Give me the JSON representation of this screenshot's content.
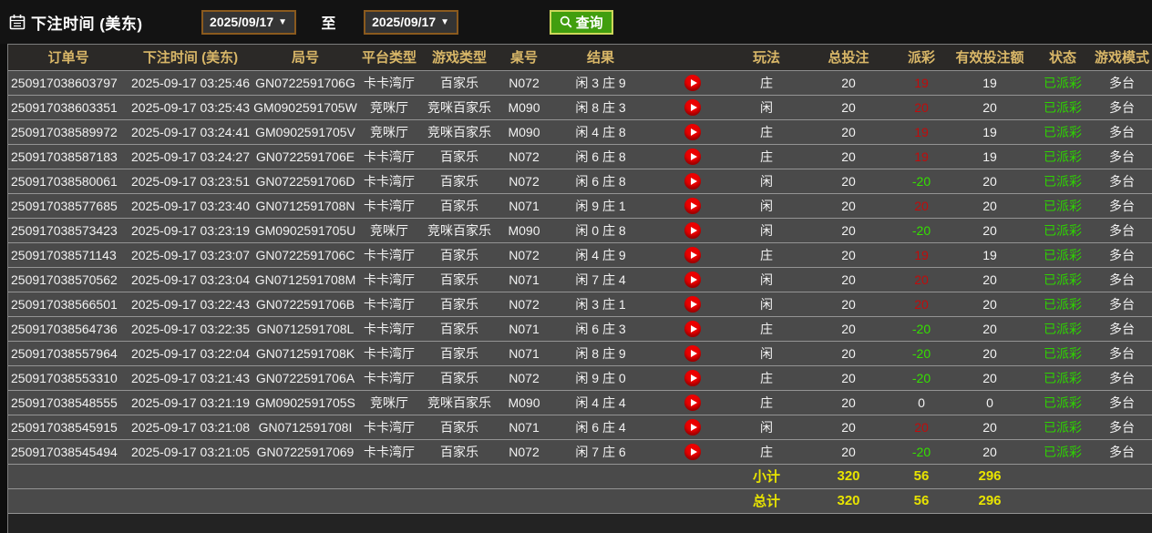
{
  "query_bar": {
    "label": "下注时间 (美东)",
    "date_from": "2025/09/17",
    "to_label": "至",
    "date_to": "2025/09/17",
    "caret": "▼",
    "search_label": "查询"
  },
  "table": {
    "columns": [
      {
        "key": "order_no",
        "label": "订单号"
      },
      {
        "key": "bet_time",
        "label": "下注时间 (美东)"
      },
      {
        "key": "round_no",
        "label": "局号"
      },
      {
        "key": "platform",
        "label": "平台类型"
      },
      {
        "key": "game_type",
        "label": "游戏类型"
      },
      {
        "key": "table_no",
        "label": "桌号"
      },
      {
        "key": "result",
        "label": "结果"
      },
      {
        "key": "video",
        "label": ""
      },
      {
        "key": "play",
        "label": "玩法"
      },
      {
        "key": "total_bet",
        "label": "总投注"
      },
      {
        "key": "payout",
        "label": "派彩"
      },
      {
        "key": "valid_bet",
        "label": "有效投注额"
      },
      {
        "key": "status",
        "label": "状态"
      },
      {
        "key": "mode",
        "label": "游戏模式"
      }
    ],
    "rows": [
      {
        "order_no": "250917038603797",
        "bet_time": "2025-09-17 03:25:46",
        "round_no": "GN0722591706G",
        "platform": "卡卡湾厅",
        "game_type": "百家乐",
        "table_no": "N072",
        "result": "闲 3 庄 9",
        "play": "庄",
        "total_bet": "20",
        "payout": "19",
        "payout_color": "win",
        "valid_bet": "19",
        "status": "已派彩",
        "mode": "多台"
      },
      {
        "order_no": "250917038603351",
        "bet_time": "2025-09-17 03:25:43",
        "round_no": "GM0902591705W",
        "platform": "竞咪厅",
        "game_type": "竞咪百家乐",
        "table_no": "M090",
        "result": "闲 8 庄 3",
        "play": "闲",
        "total_bet": "20",
        "payout": "20",
        "payout_color": "win",
        "valid_bet": "20",
        "status": "已派彩",
        "mode": "多台"
      },
      {
        "order_no": "250917038589972",
        "bet_time": "2025-09-17 03:24:41",
        "round_no": "GM0902591705V",
        "platform": "竞咪厅",
        "game_type": "竞咪百家乐",
        "table_no": "M090",
        "result": "闲 4 庄 8",
        "play": "庄",
        "total_bet": "20",
        "payout": "19",
        "payout_color": "win",
        "valid_bet": "19",
        "status": "已派彩",
        "mode": "多台"
      },
      {
        "order_no": "250917038587183",
        "bet_time": "2025-09-17 03:24:27",
        "round_no": "GN0722591706E",
        "platform": "卡卡湾厅",
        "game_type": "百家乐",
        "table_no": "N072",
        "result": "闲 6 庄 8",
        "play": "庄",
        "total_bet": "20",
        "payout": "19",
        "payout_color": "win",
        "valid_bet": "19",
        "status": "已派彩",
        "mode": "多台"
      },
      {
        "order_no": "250917038580061",
        "bet_time": "2025-09-17 03:23:51",
        "round_no": "GN0722591706D",
        "platform": "卡卡湾厅",
        "game_type": "百家乐",
        "table_no": "N072",
        "result": "闲 6 庄 8",
        "play": "闲",
        "total_bet": "20",
        "payout": "-20",
        "payout_color": "loss",
        "valid_bet": "20",
        "status": "已派彩",
        "mode": "多台"
      },
      {
        "order_no": "250917038577685",
        "bet_time": "2025-09-17 03:23:40",
        "round_no": "GN0712591708N",
        "platform": "卡卡湾厅",
        "game_type": "百家乐",
        "table_no": "N071",
        "result": "闲 9 庄 1",
        "play": "闲",
        "total_bet": "20",
        "payout": "20",
        "payout_color": "win",
        "valid_bet": "20",
        "status": "已派彩",
        "mode": "多台"
      },
      {
        "order_no": "250917038573423",
        "bet_time": "2025-09-17 03:23:19",
        "round_no": "GM0902591705U",
        "platform": "竞咪厅",
        "game_type": "竞咪百家乐",
        "table_no": "M090",
        "result": "闲 0 庄 8",
        "play": "闲",
        "total_bet": "20",
        "payout": "-20",
        "payout_color": "loss",
        "valid_bet": "20",
        "status": "已派彩",
        "mode": "多台"
      },
      {
        "order_no": "250917038571143",
        "bet_time": "2025-09-17 03:23:07",
        "round_no": "GN0722591706C",
        "platform": "卡卡湾厅",
        "game_type": "百家乐",
        "table_no": "N072",
        "result": "闲 4 庄 9",
        "play": "庄",
        "total_bet": "20",
        "payout": "19",
        "payout_color": "win",
        "valid_bet": "19",
        "status": "已派彩",
        "mode": "多台"
      },
      {
        "order_no": "250917038570562",
        "bet_time": "2025-09-17 03:23:04",
        "round_no": "GN0712591708M",
        "platform": "卡卡湾厅",
        "game_type": "百家乐",
        "table_no": "N071",
        "result": "闲 7 庄 4",
        "play": "闲",
        "total_bet": "20",
        "payout": "20",
        "payout_color": "win",
        "valid_bet": "20",
        "status": "已派彩",
        "mode": "多台"
      },
      {
        "order_no": "250917038566501",
        "bet_time": "2025-09-17 03:22:43",
        "round_no": "GN0722591706B",
        "platform": "卡卡湾厅",
        "game_type": "百家乐",
        "table_no": "N072",
        "result": "闲 3 庄 1",
        "play": "闲",
        "total_bet": "20",
        "payout": "20",
        "payout_color": "win",
        "valid_bet": "20",
        "status": "已派彩",
        "mode": "多台"
      },
      {
        "order_no": "250917038564736",
        "bet_time": "2025-09-17 03:22:35",
        "round_no": "GN0712591708L",
        "platform": "卡卡湾厅",
        "game_type": "百家乐",
        "table_no": "N071",
        "result": "闲 6 庄 3",
        "play": "庄",
        "total_bet": "20",
        "payout": "-20",
        "payout_color": "loss",
        "valid_bet": "20",
        "status": "已派彩",
        "mode": "多台"
      },
      {
        "order_no": "250917038557964",
        "bet_time": "2025-09-17 03:22:04",
        "round_no": "GN0712591708K",
        "platform": "卡卡湾厅",
        "game_type": "百家乐",
        "table_no": "N071",
        "result": "闲 8 庄 9",
        "play": "闲",
        "total_bet": "20",
        "payout": "-20",
        "payout_color": "loss",
        "valid_bet": "20",
        "status": "已派彩",
        "mode": "多台"
      },
      {
        "order_no": "250917038553310",
        "bet_time": "2025-09-17 03:21:43",
        "round_no": "GN0722591706A",
        "platform": "卡卡湾厅",
        "game_type": "百家乐",
        "table_no": "N072",
        "result": "闲 9 庄 0",
        "play": "庄",
        "total_bet": "20",
        "payout": "-20",
        "payout_color": "loss",
        "valid_bet": "20",
        "status": "已派彩",
        "mode": "多台"
      },
      {
        "order_no": "250917038548555",
        "bet_time": "2025-09-17 03:21:19",
        "round_no": "GM0902591705S",
        "platform": "竞咪厅",
        "game_type": "竞咪百家乐",
        "table_no": "M090",
        "result": "闲 4 庄 4",
        "play": "庄",
        "total_bet": "20",
        "payout": "0",
        "payout_color": "zero",
        "valid_bet": "0",
        "status": "已派彩",
        "mode": "多台"
      },
      {
        "order_no": "250917038545915",
        "bet_time": "2025-09-17 03:21:08",
        "round_no": "GN0712591708I",
        "platform": "卡卡湾厅",
        "game_type": "百家乐",
        "table_no": "N071",
        "result": "闲 6 庄 4",
        "play": "闲",
        "total_bet": "20",
        "payout": "20",
        "payout_color": "win",
        "valid_bet": "20",
        "status": "已派彩",
        "mode": "多台"
      },
      {
        "order_no": "250917038545494",
        "bet_time": "2025-09-17 03:21:05",
        "round_no": "GN07225917069",
        "platform": "卡卡湾厅",
        "game_type": "百家乐",
        "table_no": "N072",
        "result": "闲 7 庄 6",
        "play": "庄",
        "total_bet": "20",
        "payout": "-20",
        "payout_color": "loss",
        "valid_bet": "20",
        "status": "已派彩",
        "mode": "多台"
      }
    ],
    "subtotal": {
      "label": "小计",
      "total_bet": "320",
      "payout": "56",
      "valid_bet": "296"
    },
    "total": {
      "label": "总计",
      "total_bet": "320",
      "payout": "56",
      "valid_bet": "296"
    }
  },
  "colors": {
    "payout_win": "#c00c0c",
    "payout_loss": "#35e000",
    "status_paid": "#2ed300",
    "totals_text": "#e8e400",
    "header_text": "#d9b768",
    "button_green": "#419e0f",
    "date_border": "#8a5a1e"
  }
}
